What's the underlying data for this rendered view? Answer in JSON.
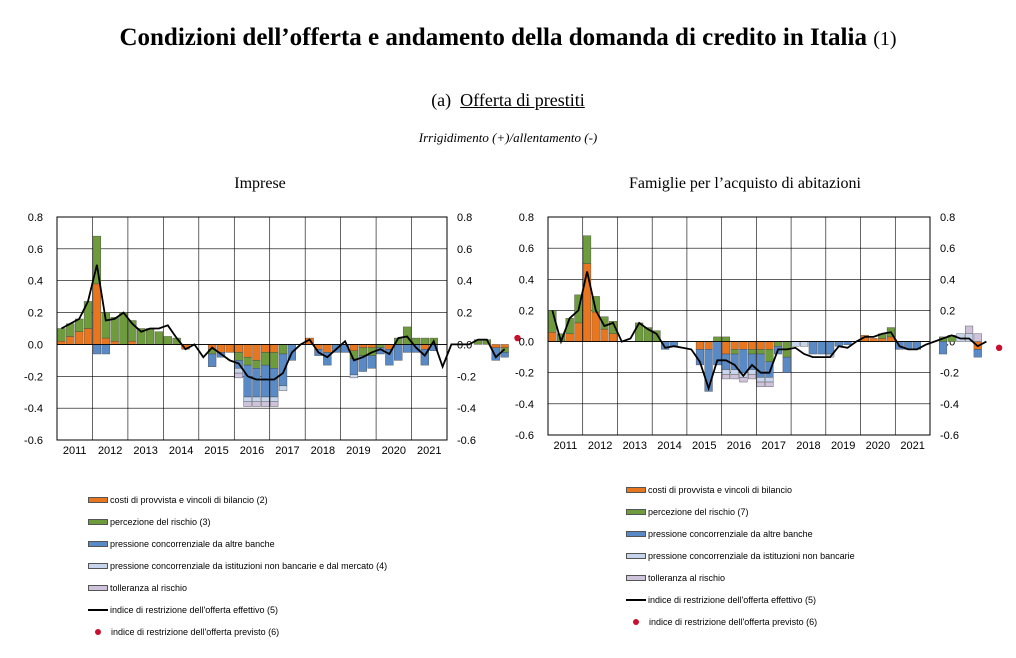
{
  "page": {
    "title": "Condizioni dell’offerta e andamento della domanda di credito in Italia",
    "title_note": "(1)",
    "panel_prefix": "(a)",
    "panel_label": "Offerta di prestiti",
    "caption": "Irrigidimento (+)/allentamento (-)"
  },
  "colors": {
    "costi": "#e8761e",
    "rischio": "#6e9b3c",
    "pressione_banche": "#5a8ac6",
    "pressione_non_bancarie": "#c6d5ec",
    "tolleranza": "#cfc3dc",
    "indice": "#000000",
    "previsto": "#c8102e"
  },
  "chart_data": [
    {
      "type": "bar",
      "title": "Imprese",
      "stacked": true,
      "ylim": [
        -0.6,
        0.8
      ],
      "yticks": [
        "0.8",
        "0.6",
        "0.4",
        "0.2",
        "0.0",
        "-0.2",
        "-0.4",
        "-0.6"
      ],
      "x_tick_labels": [
        "2011",
        "2012",
        "2013",
        "2014",
        "2015",
        "2016",
        "2017",
        "2018",
        "2019",
        "2020",
        "2021"
      ],
      "x_start_year": 2011,
      "quarters_per_year": 4,
      "grid": true,
      "legend_position": "bottom",
      "series": [
        {
          "name": "costi di provvista e vincoli di bilancio (2)",
          "color_key": "costi",
          "values": [
            0.02,
            0.05,
            0.08,
            0.1,
            0.38,
            0.04,
            0.02,
            0.0,
            0.02,
            0.0,
            0.0,
            0.0,
            0.0,
            0.0,
            -0.03,
            0.0,
            0.0,
            -0.03,
            -0.05,
            -0.05,
            -0.05,
            -0.08,
            -0.1,
            -0.05,
            -0.05,
            0.0,
            0.0,
            0.0,
            0.04,
            -0.03,
            -0.05,
            0.0,
            0.0,
            -0.04,
            -0.02,
            -0.02,
            0.0,
            -0.03,
            0.0,
            0.0,
            0.0,
            -0.03,
            0.0,
            0.0,
            0.0,
            0.0,
            0.0,
            0.0,
            0.0,
            -0.02,
            -0.02
          ]
        },
        {
          "name": "percezione del rischio (3)",
          "color_key": "rischio",
          "values": [
            0.08,
            0.08,
            0.08,
            0.17,
            0.3,
            0.16,
            0.15,
            0.2,
            0.13,
            0.1,
            0.1,
            0.08,
            0.05,
            0.04,
            0.0,
            0.0,
            0.0,
            -0.03,
            0.0,
            0.0,
            -0.05,
            -0.05,
            -0.05,
            -0.08,
            -0.1,
            -0.06,
            0.0,
            0.0,
            0.0,
            0.0,
            0.0,
            0.0,
            0.0,
            -0.05,
            -0.05,
            -0.05,
            -0.02,
            0.0,
            0.04,
            0.11,
            0.04,
            0.04,
            0.04,
            0.0,
            0.0,
            0.0,
            0.0,
            0.03,
            0.03,
            0.0,
            -0.03
          ]
        },
        {
          "name": "pressione concorrenziale da altre banche",
          "color_key": "pressione_banche",
          "values": [
            0,
            0,
            0,
            0,
            -0.06,
            -0.06,
            0,
            0,
            0,
            0,
            0,
            0,
            0,
            0,
            0,
            0,
            0,
            -0.08,
            -0.03,
            0,
            -0.05,
            -0.2,
            -0.18,
            -0.2,
            -0.18,
            -0.2,
            -0.1,
            0,
            0,
            -0.04,
            -0.08,
            -0.05,
            -0.05,
            -0.1,
            -0.1,
            -0.08,
            -0.04,
            -0.1,
            -0.1,
            -0.05,
            -0.05,
            -0.1,
            -0.04,
            0,
            0,
            0,
            0,
            0,
            0,
            -0.08,
            -0.03
          ]
        },
        {
          "name": "pressione concorrenziale da istituzioni non bancarie e dal mercato (4)",
          "color_key": "pressione_non_bancarie",
          "values": [
            0,
            0,
            0,
            0,
            0,
            0,
            0,
            0,
            0,
            0,
            0,
            0,
            0,
            0,
            0,
            0,
            0,
            0,
            0,
            0,
            -0.03,
            -0.03,
            -0.03,
            -0.03,
            -0.03,
            -0.03,
            0,
            0,
            0,
            0,
            0,
            0,
            0,
            -0.02,
            0,
            0,
            0,
            0,
            0,
            0,
            0,
            0,
            0,
            0,
            0,
            0,
            0,
            0,
            0,
            0,
            0
          ]
        },
        {
          "name": "tolleranza al rischio",
          "color_key": "tolleranza",
          "values": [
            0,
            0,
            0,
            0,
            0,
            0,
            0,
            0,
            0,
            0,
            0,
            0,
            0,
            0,
            0,
            0,
            0,
            0,
            0,
            0,
            -0.03,
            -0.03,
            -0.03,
            -0.03,
            -0.03,
            0,
            0,
            0,
            0,
            0,
            0,
            0,
            0,
            0,
            0,
            0,
            0,
            0,
            0,
            0,
            0,
            0,
            0,
            0,
            0,
            0,
            0,
            0,
            0,
            0,
            0
          ]
        }
      ],
      "line": {
        "name": "indice di restrizione dell'offerta effettivo (5)",
        "color_key": "indice",
        "values": [
          0.1,
          0.13,
          0.16,
          0.27,
          0.5,
          0.15,
          0.16,
          0.2,
          0.13,
          0.08,
          0.1,
          0.1,
          0.12,
          0.04,
          -0.03,
          0.0,
          -0.08,
          -0.02,
          -0.06,
          -0.1,
          -0.12,
          -0.2,
          -0.22,
          -0.22,
          -0.22,
          -0.18,
          -0.05,
          0.0,
          0.03,
          -0.05,
          -0.08,
          -0.03,
          0.02,
          -0.1,
          -0.08,
          -0.05,
          -0.03,
          -0.06,
          0.04,
          0.05,
          -0.02,
          -0.07,
          0.02,
          -0.14,
          0.0,
          0.0,
          0.0,
          0.03,
          0.03,
          -0.08,
          -0.03
        ]
      },
      "forecast": {
        "name": "indice di restrizione dell'offerta previsto (6)",
        "color_key": "previsto",
        "value": 0.04
      }
    },
    {
      "type": "bar",
      "title": "Famiglie per l’acquisto di abitazioni",
      "stacked": true,
      "ylim": [
        -0.6,
        0.8
      ],
      "yticks": [
        "0.8",
        "0.6",
        "0.4",
        "0.2",
        "0.0",
        "-0.2",
        "-0.4",
        "-0.6"
      ],
      "x_tick_labels": [
        "2011",
        "2012",
        "2013",
        "2014",
        "2015",
        "2016",
        "2017",
        "2018",
        "2019",
        "2020",
        "2021"
      ],
      "x_start_year": 2011,
      "quarters_per_year": 4,
      "grid": true,
      "legend_position": "bottom",
      "series": [
        {
          "name": "costi di provvista e vincoli di bilancio",
          "color_key": "costi",
          "values": [
            0.06,
            0.0,
            0.05,
            0.12,
            0.5,
            0.19,
            0.08,
            0.05,
            0.0,
            0.0,
            0.0,
            0.0,
            0.0,
            0.0,
            0.0,
            0.0,
            0.0,
            -0.05,
            -0.05,
            0.0,
            -0.08,
            -0.05,
            -0.05,
            -0.05,
            -0.05,
            -0.05,
            0.0,
            0.0,
            0.0,
            0.0,
            0.0,
            0.0,
            0.0,
            0.0,
            0.0,
            0.0,
            0.04,
            0.02,
            0.02,
            0.03,
            0.0,
            0.0,
            0.0,
            0.0,
            0.0,
            0.0,
            0.0,
            0.0,
            0.0,
            -0.05,
            0.0
          ]
        },
        {
          "name": "percezione del rischio (7)",
          "color_key": "rischio",
          "values": [
            0.14,
            0.05,
            0.1,
            0.18,
            0.18,
            0.1,
            0.08,
            0.08,
            0.0,
            0.0,
            0.12,
            0.09,
            0.07,
            0.0,
            0.0,
            0.0,
            0.0,
            0.0,
            0.0,
            0.03,
            0.03,
            -0.03,
            0.0,
            -0.03,
            -0.03,
            -0.08,
            -0.03,
            -0.1,
            0.0,
            0.0,
            0.0,
            0.0,
            0.0,
            0.0,
            0.0,
            0.0,
            0.0,
            0.0,
            0.03,
            0.06,
            0.0,
            0.0,
            0.0,
            0.0,
            0.0,
            0.03,
            0.04,
            0.0,
            0.0,
            0.0,
            0.0
          ]
        },
        {
          "name": "pressione concorrenziale da altre banche",
          "color_key": "pressione_banche",
          "values": [
            0,
            0,
            0,
            0,
            0,
            0,
            0,
            0,
            0,
            0,
            0,
            0,
            0,
            -0.05,
            -0.03,
            0,
            0,
            -0.1,
            -0.27,
            -0.15,
            -0.1,
            -0.1,
            -0.15,
            -0.1,
            -0.15,
            -0.1,
            -0.05,
            -0.1,
            0,
            0,
            -0.08,
            -0.08,
            -0.08,
            -0.03,
            -0.02,
            0,
            0,
            0,
            0,
            0,
            -0.05,
            -0.05,
            -0.05,
            0,
            0,
            -0.08,
            0,
            0,
            0,
            -0.05,
            0
          ]
        },
        {
          "name": "pressione concorrenziale da istituzioni non bancarie",
          "color_key": "pressione_non_bancarie",
          "values": [
            0,
            0,
            0,
            0,
            0,
            0,
            0,
            0,
            0,
            0,
            0,
            0,
            0,
            0,
            0,
            0,
            0,
            0,
            0,
            0,
            -0.03,
            -0.03,
            -0.03,
            -0.03,
            -0.03,
            -0.03,
            0,
            0,
            -0.03,
            -0.03,
            0,
            0,
            -0.02,
            0,
            0,
            0,
            0,
            0,
            0,
            0,
            0,
            0,
            0,
            0,
            0,
            0,
            0,
            0.05,
            0.05,
            0,
            0
          ]
        },
        {
          "name": "tolleranza al rischio",
          "color_key": "tolleranza",
          "values": [
            0,
            0,
            0,
            0,
            0,
            0,
            0,
            0,
            0,
            0,
            0,
            0,
            0,
            0,
            0,
            0,
            0,
            0,
            0,
            0,
            -0.03,
            -0.03,
            -0.03,
            -0.03,
            -0.03,
            -0.03,
            0,
            0,
            0,
            0,
            0,
            0,
            0,
            0,
            0,
            0,
            0,
            0,
            0,
            0,
            0,
            0,
            0,
            0,
            0,
            0,
            0,
            0,
            0.05,
            0.05,
            0
          ]
        }
      ],
      "line": {
        "name": "indice di restrizione dell'offerta effettivo (5)",
        "color_key": "indice",
        "values": [
          0.2,
          0.0,
          0.15,
          0.2,
          0.45,
          0.2,
          0.1,
          0.12,
          0.0,
          0.02,
          0.12,
          0.08,
          0.05,
          -0.04,
          -0.03,
          -0.04,
          -0.05,
          -0.13,
          -0.3,
          -0.12,
          -0.12,
          -0.15,
          -0.22,
          -0.15,
          -0.2,
          -0.2,
          -0.05,
          -0.05,
          -0.04,
          -0.08,
          -0.1,
          -0.1,
          -0.1,
          -0.03,
          -0.04,
          0.0,
          0.03,
          0.03,
          0.05,
          0.06,
          -0.03,
          -0.05,
          -0.05,
          -0.02,
          0.0,
          0.02,
          0.04,
          0.02,
          0.02,
          -0.03,
          0.0
        ]
      },
      "forecast": {
        "name": "indice di restrizione dell'offerta previsto (6)",
        "color_key": "previsto",
        "value": -0.04
      }
    }
  ]
}
